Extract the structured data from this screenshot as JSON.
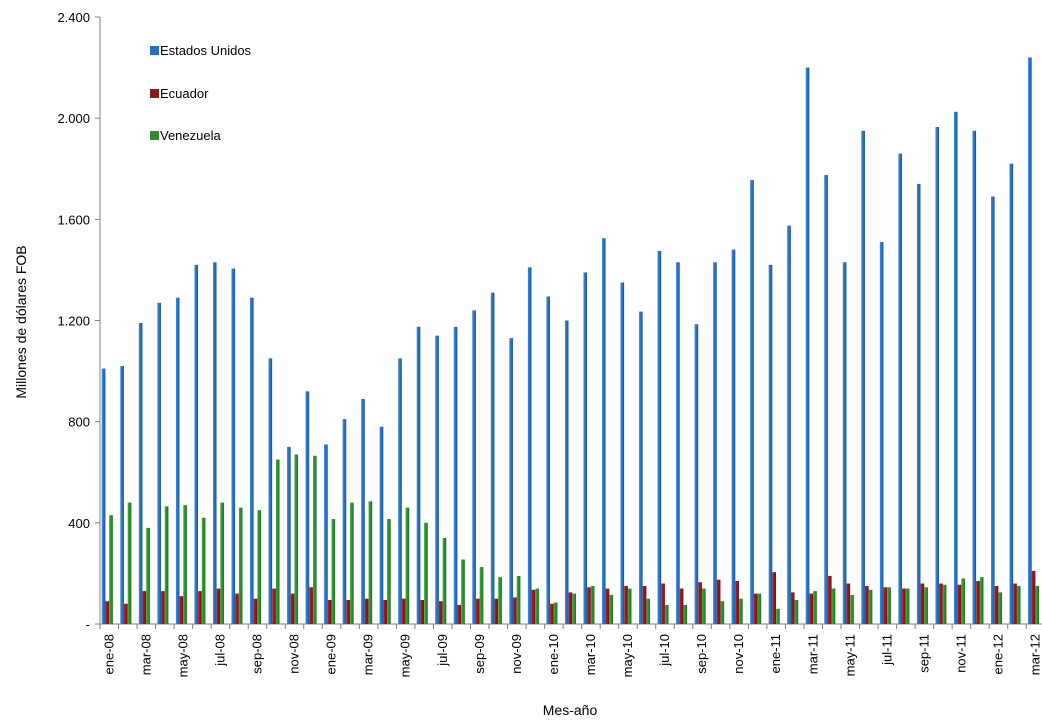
{
  "chart_data": {
    "type": "bar",
    "xlabel": "Mes-año",
    "ylabel": "Millones de dólares FOB",
    "ylim": [
      0,
      2400
    ],
    "yticks": [
      {
        "value": 0,
        "label": "-"
      },
      {
        "value": 400,
        "label": "400"
      },
      {
        "value": 800,
        "label": "800"
      },
      {
        "value": 1200,
        "label": "1.200"
      },
      {
        "value": 1600,
        "label": "1.600"
      },
      {
        "value": 2000,
        "label": "2.000"
      },
      {
        "value": 2400,
        "label": "2.400"
      }
    ],
    "categories": [
      "ene-08",
      "feb-08",
      "mar-08",
      "abr-08",
      "may-08",
      "jun-08",
      "jul-08",
      "ago-08",
      "sep-08",
      "oct-08",
      "nov-08",
      "dic-08",
      "ene-09",
      "feb-09",
      "mar-09",
      "abr-09",
      "may-09",
      "jun-09",
      "jul-09",
      "ago-09",
      "sep-09",
      "oct-09",
      "nov-09",
      "dic-09",
      "ene-10",
      "feb-10",
      "mar-10",
      "abr-10",
      "may-10",
      "jun-10",
      "jul-10",
      "ago-10",
      "sep-10",
      "oct-10",
      "nov-10",
      "dic-10",
      "ene-11",
      "feb-11",
      "mar-11",
      "abr-11",
      "may-11",
      "jun-11",
      "jul-11",
      "ago-11",
      "sep-11",
      "oct-11",
      "nov-11",
      "dic-11",
      "ene-12",
      "feb-12",
      "mar-12"
    ],
    "tick_labels": [
      "ene-08",
      "",
      "mar-08",
      "",
      "may-08",
      "",
      "jul-08",
      "",
      "sep-08",
      "",
      "nov-08",
      "",
      "ene-09",
      "",
      "mar-09",
      "",
      "may-09",
      "",
      "jul-09",
      "",
      "sep-09",
      "",
      "nov-09",
      "",
      "ene-10",
      "",
      "mar-10",
      "",
      "may-10",
      "",
      "jul-10",
      "",
      "sep-10",
      "",
      "nov-10",
      "",
      "ene-11",
      "",
      "mar-11",
      "",
      "may-11",
      "",
      "jul-11",
      "",
      "sep-11",
      "",
      "nov-11",
      "",
      "ene-12",
      "",
      "mar-12"
    ],
    "legend_position": "top-left",
    "grid": false,
    "series": [
      {
        "name": "Estados Unidos",
        "color": "#2a6ebb",
        "values": [
          1010,
          1020,
          1190,
          1270,
          1290,
          1420,
          1430,
          1405,
          1290,
          1050,
          700,
          920,
          710,
          810,
          890,
          780,
          1050,
          1175,
          1140,
          1175,
          1240,
          1310,
          1130,
          1410,
          1295,
          1200,
          1390,
          1525,
          1350,
          1235,
          1475,
          1430,
          1185,
          1430,
          1480,
          1755,
          1420,
          1575,
          2200,
          1775,
          1430,
          1950,
          1510,
          1860,
          1740,
          1965,
          2025,
          1950,
          1690,
          1820,
          2240
        ]
      },
      {
        "name": "Ecuador",
        "color": "#8c1a1a",
        "values": [
          90,
          80,
          130,
          130,
          110,
          130,
          140,
          120,
          100,
          140,
          120,
          145,
          95,
          95,
          100,
          95,
          100,
          95,
          90,
          75,
          100,
          100,
          105,
          135,
          80,
          125,
          145,
          140,
          150,
          150,
          160,
          140,
          165,
          175,
          170,
          120,
          205,
          125,
          120,
          190,
          160,
          150,
          145,
          140,
          160,
          160,
          155,
          170,
          150,
          160,
          210
        ]
      },
      {
        "name": "Venezuela",
        "color": "#2e8b2e",
        "values": [
          430,
          480,
          380,
          465,
          470,
          420,
          480,
          460,
          450,
          650,
          670,
          665,
          415,
          480,
          485,
          415,
          460,
          400,
          340,
          255,
          225,
          185,
          190,
          140,
          85,
          120,
          150,
          115,
          140,
          100,
          75,
          75,
          140,
          90,
          100,
          120,
          60,
          95,
          130,
          140,
          115,
          135,
          145,
          140,
          145,
          155,
          180,
          185,
          125,
          150,
          150
        ]
      }
    ]
  }
}
